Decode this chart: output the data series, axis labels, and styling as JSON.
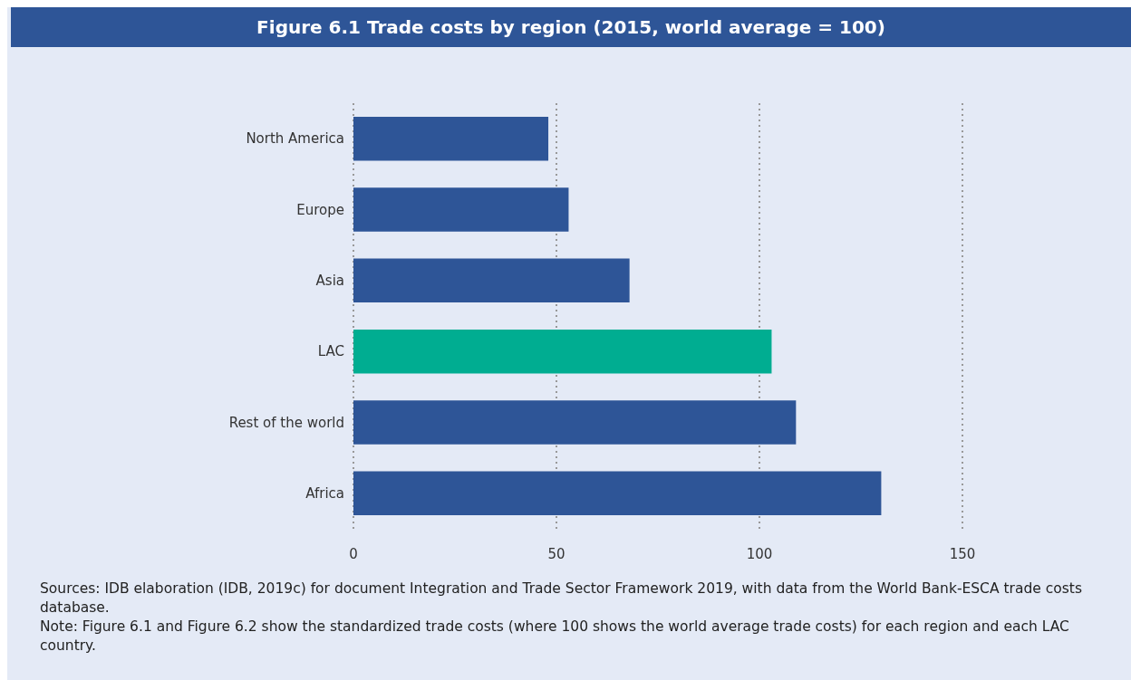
{
  "chart_data": {
    "type": "bar",
    "orientation": "horizontal",
    "title": "Figure 6.1 Trade costs by region (2015, world average = 100)",
    "categories": [
      "North America",
      "Europe",
      "Asia",
      "LAC",
      "Rest of the world",
      "Africa"
    ],
    "values": [
      48,
      53,
      68,
      103,
      109,
      130
    ],
    "colors": [
      "#2e5597",
      "#2e5597",
      "#2e5597",
      "#00ad91",
      "#2e5597",
      "#2e5597"
    ],
    "xlim": [
      0,
      150
    ],
    "xticks": [
      0,
      50,
      100,
      150
    ],
    "grid": "x",
    "annotations": [
      "Sources: IDB elaboration (IDB, 2019c) for document Integration and Trade Sector Framework 2019, with data from the World Bank-ESCA trade costs database.",
      "Note: Figure 6.1 and Figure 6.2 show the standardized trade costs (where 100 shows the world average trade costs) for each region and each LAC country."
    ]
  }
}
